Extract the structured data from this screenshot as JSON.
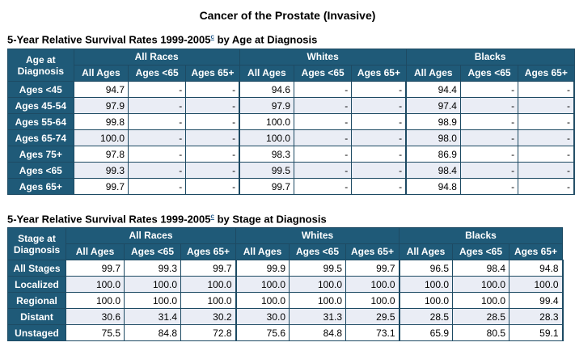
{
  "page_title": "Cancer of the Prostate (Invasive)",
  "footnote_marker": "c",
  "groups": [
    "All Races",
    "Whites",
    "Blacks"
  ],
  "subcolumns": [
    "All Ages",
    "Ages <65",
    "Ages 65+"
  ],
  "table1": {
    "title_prefix": "5-Year Relative Survival Rates 1999-2005",
    "title_suffix": " by Age at Diagnosis",
    "corner_label_line1": "Age at",
    "corner_label_line2": "Diagnosis",
    "rows": [
      {
        "label": "Ages <45",
        "cells": [
          "94.7",
          "-",
          "-",
          "94.6",
          "-",
          "-",
          "94.4",
          "-",
          "-"
        ]
      },
      {
        "label": "Ages 45-54",
        "cells": [
          "97.9",
          "-",
          "-",
          "97.9",
          "-",
          "-",
          "97.4",
          "-",
          "-"
        ]
      },
      {
        "label": "Ages 55-64",
        "cells": [
          "99.8",
          "-",
          "-",
          "100.0",
          "-",
          "-",
          "98.9",
          "-",
          "-"
        ]
      },
      {
        "label": "Ages 65-74",
        "cells": [
          "100.0",
          "-",
          "-",
          "100.0",
          "-",
          "-",
          "98.0",
          "-",
          "-"
        ]
      },
      {
        "label": "Ages 75+",
        "cells": [
          "97.8",
          "-",
          "-",
          "98.3",
          "-",
          "-",
          "86.9",
          "-",
          "-"
        ]
      },
      {
        "label": "Ages <65",
        "cells": [
          "99.3",
          "-",
          "-",
          "99.5",
          "-",
          "-",
          "98.4",
          "-",
          "-"
        ]
      },
      {
        "label": "Ages 65+",
        "cells": [
          "99.7",
          "-",
          "-",
          "99.7",
          "-",
          "-",
          "94.8",
          "-",
          "-"
        ]
      }
    ]
  },
  "table2": {
    "title_prefix": "5-Year Relative Survival Rates 1999-2005",
    "title_suffix": " by Stage at Diagnosis",
    "corner_label_line1": "Stage at",
    "corner_label_line2": "Diagnosis",
    "rows": [
      {
        "label": "All Stages",
        "cells": [
          "99.7",
          "99.3",
          "99.7",
          "99.9",
          "99.5",
          "99.7",
          "96.5",
          "98.4",
          "94.8"
        ]
      },
      {
        "label": "Localized",
        "cells": [
          "100.0",
          "100.0",
          "100.0",
          "100.0",
          "100.0",
          "100.0",
          "100.0",
          "100.0",
          "100.0"
        ]
      },
      {
        "label": "Regional",
        "cells": [
          "100.0",
          "100.0",
          "100.0",
          "100.0",
          "100.0",
          "100.0",
          "100.0",
          "100.0",
          "99.4"
        ]
      },
      {
        "label": "Distant",
        "cells": [
          "30.6",
          "31.4",
          "30.2",
          "30.0",
          "31.3",
          "29.5",
          "28.5",
          "28.5",
          "28.3"
        ]
      },
      {
        "label": "Unstaged",
        "cells": [
          "75.5",
          "84.8",
          "72.8",
          "75.6",
          "84.8",
          "73.1",
          "65.9",
          "80.5",
          "59.1"
        ]
      }
    ]
  }
}
